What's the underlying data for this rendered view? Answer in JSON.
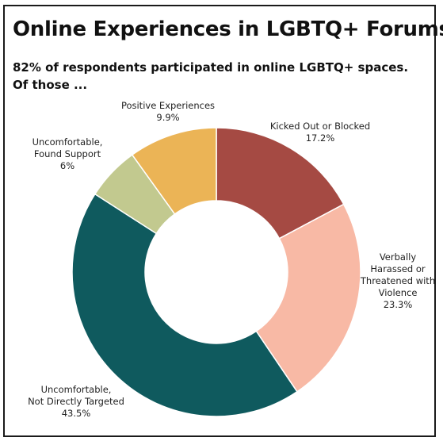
{
  "title": "Online Experiences in LGBTQ+ Forums",
  "subtitle_lines": [
    "82% of respondents participated in online LGBTQ+ spaces.",
    "Of those ..."
  ],
  "chart_data": {
    "type": "pie",
    "donut": true,
    "legend": "none",
    "slices": [
      {
        "label_lines": [
          "Kicked Out or Blocked"
        ],
        "value": 17.2,
        "value_label": "17.2%",
        "color": "#a54a43"
      },
      {
        "label_lines": [
          "Verbally",
          "Harassed or",
          "Threatened with",
          "Violence"
        ],
        "value": 23.3,
        "value_label": "23.3%",
        "color": "#f8b9a5"
      },
      {
        "label_lines": [
          "Uncomfortable,",
          "Not Directly Targeted"
        ],
        "value": 43.5,
        "value_label": "43.5%",
        "color": "#0f5a5e"
      },
      {
        "label_lines": [
          "Uncomfortable,",
          "Found Support"
        ],
        "value": 6,
        "value_label": "6%",
        "color": "#c2c98f"
      },
      {
        "label_lines": [
          "Positive Experiences"
        ],
        "value": 9.9,
        "value_label": "9.9%",
        "color": "#ebb456"
      }
    ]
  }
}
